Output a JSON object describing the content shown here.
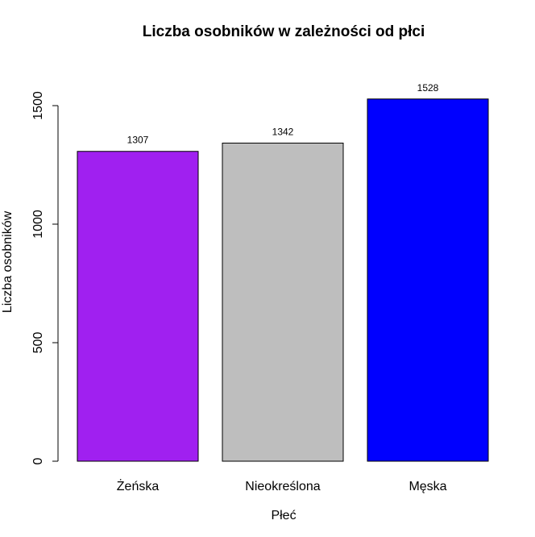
{
  "chart_data": {
    "type": "bar",
    "title": "Liczba osobników w zależności od płci",
    "xlabel": "Płeć",
    "ylabel": "Liczba osobników",
    "categories": [
      "Żeńska",
      "Nieokreślona",
      "Męska"
    ],
    "values": [
      1307,
      1342,
      1528
    ],
    "data_labels": [
      "1307",
      "1342",
      "1528"
    ],
    "colors": [
      "#a020f0",
      "#bebebe",
      "#0000ff"
    ],
    "ylim": [
      0,
      1500
    ],
    "yticks": [
      0,
      500,
      1000,
      1500
    ],
    "ytick_labels": [
      "0",
      "500",
      "1000",
      "1500"
    ],
    "grid": false,
    "legend": "none"
  }
}
